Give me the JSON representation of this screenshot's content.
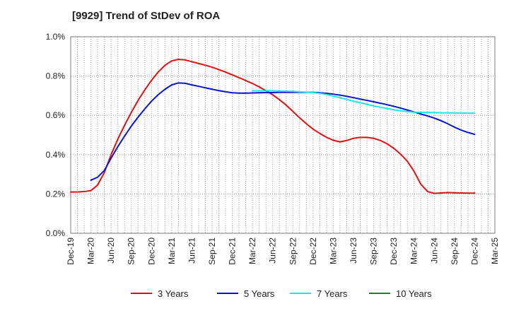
{
  "chart_data": {
    "type": "line",
    "title": "[9929]  Trend of StDev of ROA",
    "xlabel": "",
    "ylabel": "",
    "ylim": [
      0,
      1.0
    ],
    "y_ticks": [
      0,
      0.2,
      0.4,
      0.6,
      0.8,
      1.0
    ],
    "y_tick_labels": [
      "0.0%",
      "0.2%",
      "0.4%",
      "0.6%",
      "0.8%",
      "1.0%"
    ],
    "x_tick_labels": [
      "Dec-19",
      "Mar-20",
      "Jun-20",
      "Sep-20",
      "Dec-20",
      "Mar-21",
      "Jun-21",
      "Sep-21",
      "Dec-21",
      "Mar-22",
      "Jun-22",
      "Sep-22",
      "Dec-22",
      "Mar-23",
      "Jun-23",
      "Sep-23",
      "Dec-23",
      "Mar-24",
      "Jun-24",
      "Sep-24",
      "Dec-24",
      "Mar-25"
    ],
    "grid": true,
    "legend_position": "bottom",
    "series": [
      {
        "name": "3 Years",
        "color": "#dd1111",
        "points": [
          [
            0,
            0.21
          ],
          [
            0.33,
            0.21
          ],
          [
            0.67,
            0.212
          ],
          [
            1,
            0.217
          ],
          [
            1.33,
            0.245
          ],
          [
            1.67,
            0.31
          ],
          [
            2,
            0.4
          ],
          [
            2.33,
            0.478
          ],
          [
            2.67,
            0.55
          ],
          [
            3,
            0.615
          ],
          [
            3.33,
            0.675
          ],
          [
            3.67,
            0.73
          ],
          [
            4,
            0.778
          ],
          [
            4.33,
            0.82
          ],
          [
            4.67,
            0.855
          ],
          [
            5,
            0.877
          ],
          [
            5.33,
            0.885
          ],
          [
            5.67,
            0.882
          ],
          [
            6,
            0.873
          ],
          [
            6.33,
            0.864
          ],
          [
            6.67,
            0.855
          ],
          [
            7,
            0.845
          ],
          [
            7.33,
            0.833
          ],
          [
            7.67,
            0.82
          ],
          [
            8,
            0.806
          ],
          [
            8.33,
            0.792
          ],
          [
            8.67,
            0.777
          ],
          [
            9,
            0.762
          ],
          [
            9.33,
            0.745
          ],
          [
            9.67,
            0.725
          ],
          [
            10,
            0.705
          ],
          [
            10.33,
            0.68
          ],
          [
            10.67,
            0.652
          ],
          [
            11,
            0.62
          ],
          [
            11.33,
            0.588
          ],
          [
            11.67,
            0.557
          ],
          [
            12,
            0.53
          ],
          [
            12.33,
            0.508
          ],
          [
            12.67,
            0.488
          ],
          [
            13,
            0.473
          ],
          [
            13.33,
            0.465
          ],
          [
            13.67,
            0.472
          ],
          [
            14,
            0.483
          ],
          [
            14.33,
            0.488
          ],
          [
            14.67,
            0.488
          ],
          [
            15,
            0.483
          ],
          [
            15.33,
            0.472
          ],
          [
            15.67,
            0.455
          ],
          [
            16,
            0.432
          ],
          [
            16.33,
            0.403
          ],
          [
            16.67,
            0.366
          ],
          [
            17,
            0.315
          ],
          [
            17.33,
            0.25
          ],
          [
            17.67,
            0.212
          ],
          [
            18,
            0.203
          ],
          [
            18.33,
            0.205
          ],
          [
            18.67,
            0.207
          ],
          [
            19,
            0.206
          ],
          [
            19.33,
            0.205
          ],
          [
            19.67,
            0.204
          ],
          [
            20,
            0.204
          ]
        ]
      },
      {
        "name": "5 Years",
        "color": "#0a14c8",
        "points": [
          [
            1,
            0.27
          ],
          [
            1.33,
            0.285
          ],
          [
            1.67,
            0.32
          ],
          [
            2,
            0.382
          ],
          [
            2.33,
            0.44
          ],
          [
            2.67,
            0.495
          ],
          [
            3,
            0.545
          ],
          [
            3.33,
            0.59
          ],
          [
            3.67,
            0.633
          ],
          [
            4,
            0.672
          ],
          [
            4.33,
            0.705
          ],
          [
            4.67,
            0.733
          ],
          [
            5,
            0.755
          ],
          [
            5.33,
            0.765
          ],
          [
            5.67,
            0.763
          ],
          [
            6,
            0.755
          ],
          [
            6.33,
            0.748
          ],
          [
            6.67,
            0.74
          ],
          [
            7,
            0.733
          ],
          [
            7.33,
            0.726
          ],
          [
            7.67,
            0.72
          ],
          [
            8,
            0.715
          ],
          [
            8.33,
            0.713
          ],
          [
            8.67,
            0.713
          ],
          [
            9,
            0.714
          ],
          [
            9.33,
            0.715
          ],
          [
            9.67,
            0.716
          ],
          [
            10,
            0.716
          ],
          [
            10.33,
            0.717
          ],
          [
            10.67,
            0.717
          ],
          [
            11,
            0.717
          ],
          [
            11.33,
            0.717
          ],
          [
            11.67,
            0.717
          ],
          [
            12,
            0.717
          ],
          [
            12.33,
            0.715
          ],
          [
            12.67,
            0.712
          ],
          [
            13,
            0.708
          ],
          [
            13.33,
            0.703
          ],
          [
            13.67,
            0.697
          ],
          [
            14,
            0.69
          ],
          [
            14.33,
            0.683
          ],
          [
            14.67,
            0.676
          ],
          [
            15,
            0.669
          ],
          [
            15.33,
            0.662
          ],
          [
            15.67,
            0.654
          ],
          [
            16,
            0.646
          ],
          [
            16.33,
            0.637
          ],
          [
            16.67,
            0.627
          ],
          [
            17,
            0.617
          ],
          [
            17.33,
            0.607
          ],
          [
            17.67,
            0.597
          ],
          [
            18,
            0.586
          ],
          [
            18.33,
            0.573
          ],
          [
            18.67,
            0.557
          ],
          [
            19,
            0.54
          ],
          [
            19.33,
            0.525
          ],
          [
            19.67,
            0.513
          ],
          [
            20,
            0.503
          ]
        ]
      },
      {
        "name": "7 Years",
        "color": "#1ee6e6",
        "points": [
          [
            9,
            0.725
          ],
          [
            9.33,
            0.725
          ],
          [
            9.67,
            0.725
          ],
          [
            10,
            0.725
          ],
          [
            10.33,
            0.724
          ],
          [
            10.67,
            0.723
          ],
          [
            11,
            0.722
          ],
          [
            11.33,
            0.72
          ],
          [
            11.67,
            0.718
          ],
          [
            12,
            0.716
          ],
          [
            12.33,
            0.712
          ],
          [
            12.67,
            0.706
          ],
          [
            13,
            0.698
          ],
          [
            13.33,
            0.69
          ],
          [
            13.67,
            0.681
          ],
          [
            14,
            0.672
          ],
          [
            14.33,
            0.664
          ],
          [
            14.67,
            0.656
          ],
          [
            15,
            0.648
          ],
          [
            15.33,
            0.641
          ],
          [
            15.67,
            0.635
          ],
          [
            16,
            0.628
          ],
          [
            16.33,
            0.623
          ],
          [
            16.67,
            0.619
          ],
          [
            17,
            0.616
          ],
          [
            17.33,
            0.615
          ],
          [
            17.67,
            0.614
          ],
          [
            18,
            0.614
          ],
          [
            18.33,
            0.613
          ],
          [
            18.67,
            0.613
          ],
          [
            19,
            0.612
          ],
          [
            19.33,
            0.612
          ],
          [
            19.67,
            0.611
          ],
          [
            20,
            0.611
          ]
        ]
      },
      {
        "name": "10 Years",
        "color": "#1a8a1a",
        "points": []
      }
    ]
  }
}
